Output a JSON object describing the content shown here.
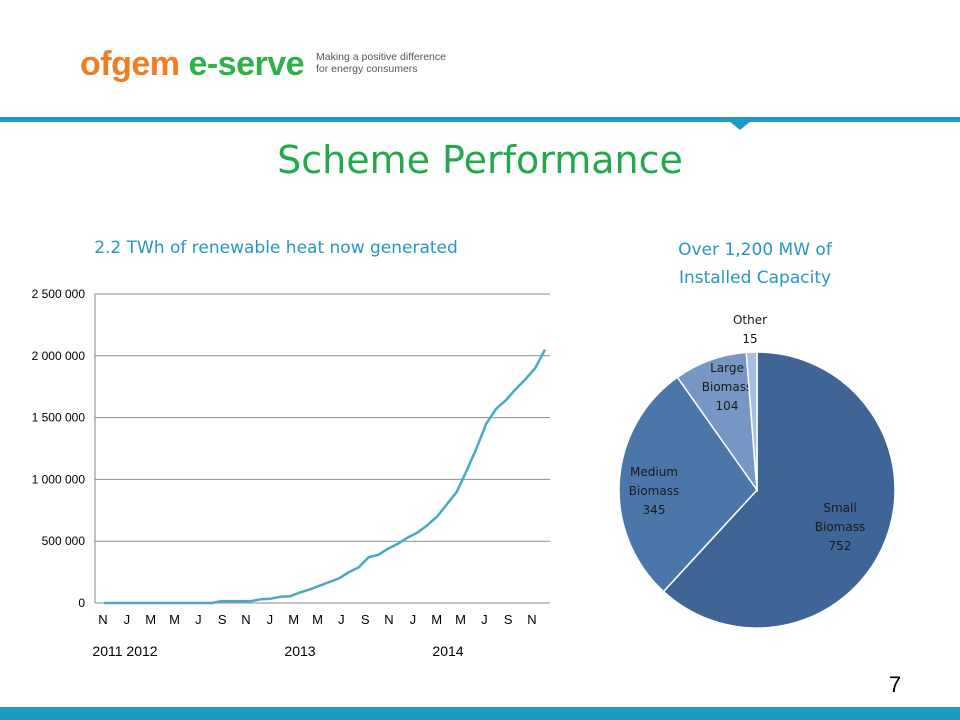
{
  "logo": {
    "brand_part1": "ofgem",
    "brand_part2": "e-serve",
    "tagline_line1": "Making a positive difference",
    "tagline_line2": "for energy consumers"
  },
  "page": {
    "title": "Scheme Performance",
    "page_number": "7"
  },
  "line_subtitle": "2.2 TWh of renewable heat now generated",
  "pie_subtitle": {
    "line1": "Over 1,200 MW of",
    "line2": "Installed Capacity"
  },
  "chart_data": [
    {
      "type": "line",
      "title": "2.2 TWh of renewable heat now generated",
      "x_tick_labels": [
        "N",
        "J",
        "M",
        "M",
        "J",
        "S",
        "N",
        "J",
        "M",
        "M",
        "J",
        "S",
        "N",
        "J",
        "M",
        "M",
        "J",
        "S",
        "N"
      ],
      "year_labels": [
        "2011 2012",
        "2013",
        "2014"
      ],
      "y_tick_labels": [
        "0",
        "500 000",
        "1 000 000",
        "1 500 000",
        "2 000 000",
        "2 500 000"
      ],
      "ylim": [
        0,
        2500000
      ],
      "y_ticks": [
        0,
        500000,
        1000000,
        1500000,
        2000000,
        2500000
      ],
      "grid": true,
      "line_color": "#4aa8c7",
      "series": [
        {
          "values": [
            0,
            0,
            0,
            0,
            0,
            0,
            0,
            0,
            0,
            0,
            0,
            0,
            15000,
            15000,
            15000,
            15000,
            30000,
            35000,
            50000,
            55000,
            85000,
            110000,
            140000,
            170000,
            200000,
            250000,
            290000,
            370000,
            390000,
            440000,
            480000,
            530000,
            570000,
            630000,
            700000,
            800000,
            900000,
            1070000,
            1250000,
            1450000,
            1570000,
            1640000,
            1730000,
            1810000,
            1900000,
            2050000
          ]
        }
      ]
    },
    {
      "type": "pie",
      "title": "Over 1,200 MW of Installed Capacity",
      "slices": [
        {
          "label_lines": [
            "Small",
            "Biomass",
            "752"
          ],
          "value": 752,
          "color": "#3e6595"
        },
        {
          "label_lines": [
            "Medium",
            "Biomass",
            "345"
          ],
          "value": 345,
          "color": "#4a76aa"
        },
        {
          "label_lines": [
            "Large",
            "Biomass",
            "104"
          ],
          "value": 104,
          "color": "#7896c4"
        },
        {
          "label_lines": [
            "Other",
            "15"
          ],
          "value": 15,
          "color": "#a8bde0"
        }
      ]
    }
  ]
}
